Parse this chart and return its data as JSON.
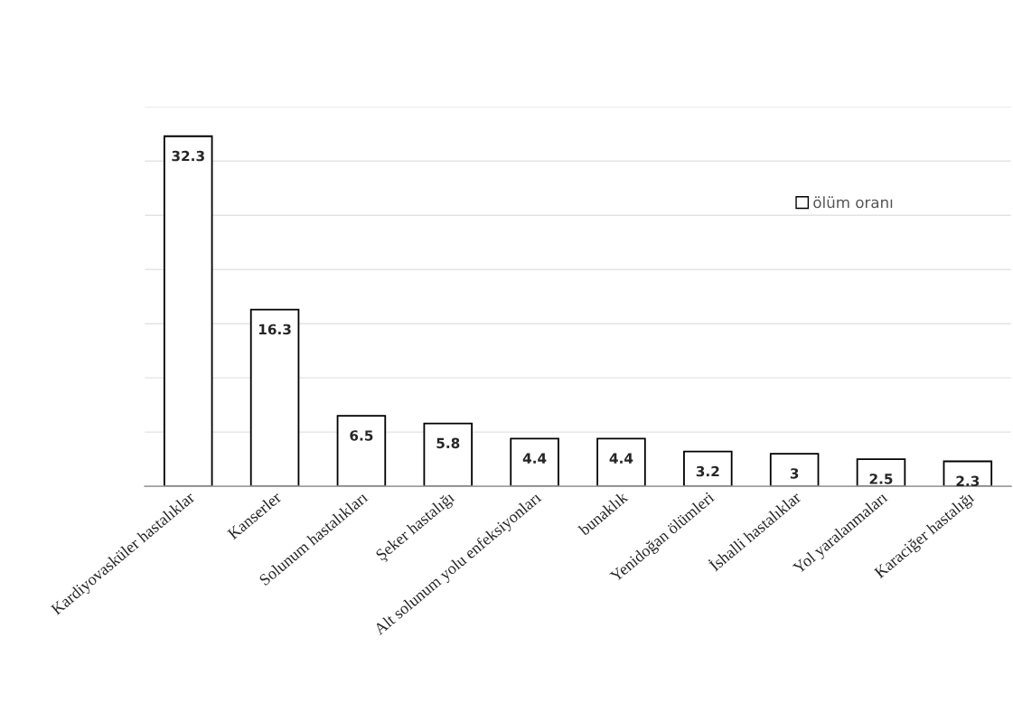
{
  "chart_data": {
    "type": "bar",
    "categories": [
      "Kardiyovasküler hastalıklar",
      "Kanserler",
      "Solunum hastalıkları",
      "Şeker hastalığı",
      "Alt solunum yolu enfeksiyonları",
      "bunaklık",
      "Yenidoğan ölümleri",
      "İshalli hastalıklar",
      "Yol yaralanmaları",
      "Karaciğer hastalığı"
    ],
    "series": [
      {
        "name": "ölüm oranı",
        "color": "#ffffff",
        "values": [
          32.3,
          16.3,
          6.5,
          5.8,
          4.4,
          4.4,
          3.2,
          3,
          2.5,
          2.3
        ]
      }
    ],
    "ylim": [
      0,
      35
    ],
    "yticks": [
      {
        "value": 0,
        "label": null
      },
      {
        "value": 5,
        "label": null
      },
      {
        "value": 10,
        "label": null
      },
      {
        "value": 15,
        "label": null
      },
      {
        "value": 20,
        "label": null
      },
      {
        "value": 25,
        "label": null
      },
      {
        "value": 30,
        "label": null
      },
      {
        "value": 35,
        "label": null
      }
    ],
    "grid": "y",
    "legend": "top right",
    "data_labels": true
  }
}
